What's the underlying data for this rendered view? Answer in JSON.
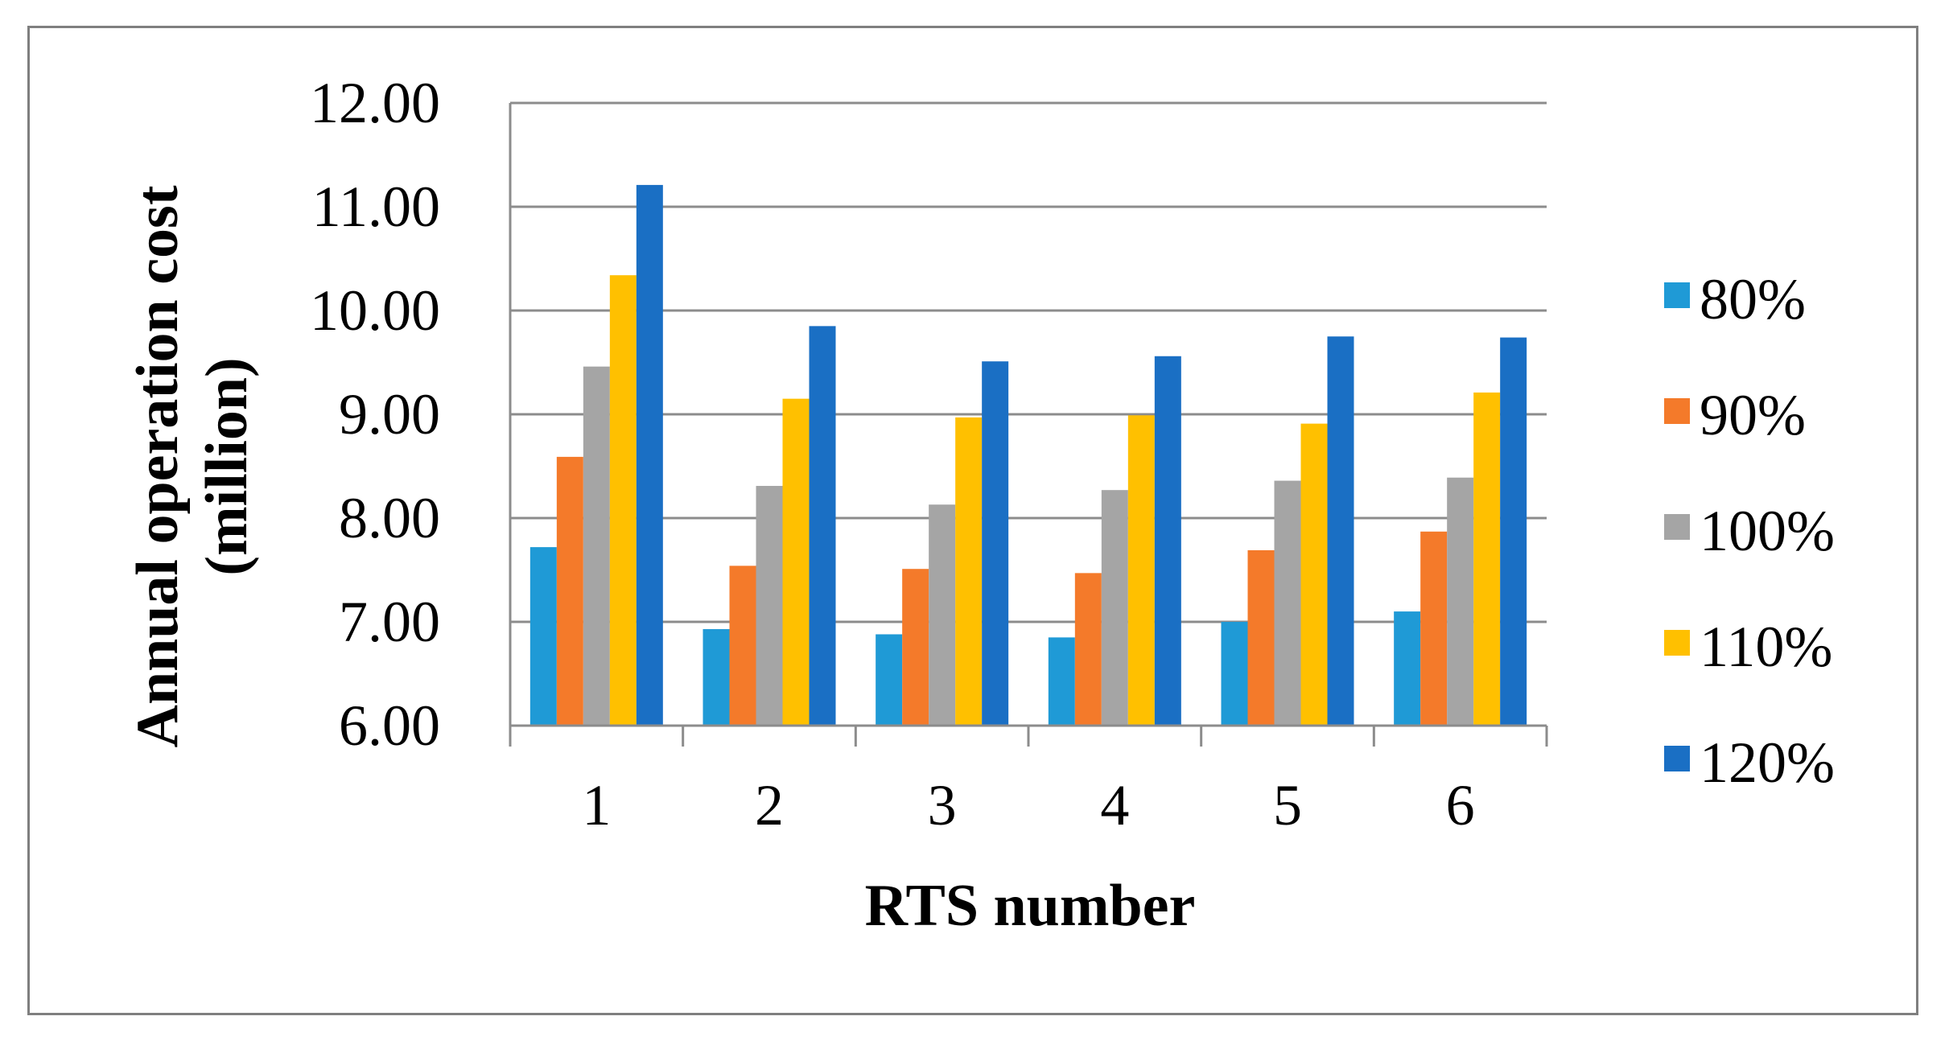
{
  "chart_data": {
    "type": "bar",
    "xlabel": "RTS number",
    "ylabel_lines": [
      "Annual operation cost",
      "(million)"
    ],
    "categories": [
      "1",
      "2",
      "3",
      "4",
      "5",
      "6"
    ],
    "ylim": [
      6,
      12
    ],
    "yticks": [
      "6.00",
      "7.00",
      "8.00",
      "9.00",
      "10.00",
      "11.00",
      "12.00"
    ],
    "grid": "horizontal",
    "legend_position": "right",
    "series": [
      {
        "name": "80%",
        "color": "#1f9ad6",
        "values": [
          7.72,
          6.93,
          6.88,
          6.85,
          7.0,
          7.1
        ]
      },
      {
        "name": "90%",
        "color": "#f47a2a",
        "values": [
          8.59,
          7.54,
          7.51,
          7.47,
          7.69,
          7.87
        ]
      },
      {
        "name": "100%",
        "color": "#a5a5a5",
        "values": [
          9.46,
          8.31,
          8.13,
          8.27,
          8.36,
          8.39
        ]
      },
      {
        "name": "110%",
        "color": "#ffc000",
        "values": [
          10.34,
          9.15,
          8.97,
          8.99,
          8.91,
          9.21
        ]
      },
      {
        "name": "120%",
        "color": "#1a6fc4",
        "values": [
          11.21,
          9.85,
          9.51,
          9.56,
          9.75,
          9.74
        ]
      }
    ]
  }
}
